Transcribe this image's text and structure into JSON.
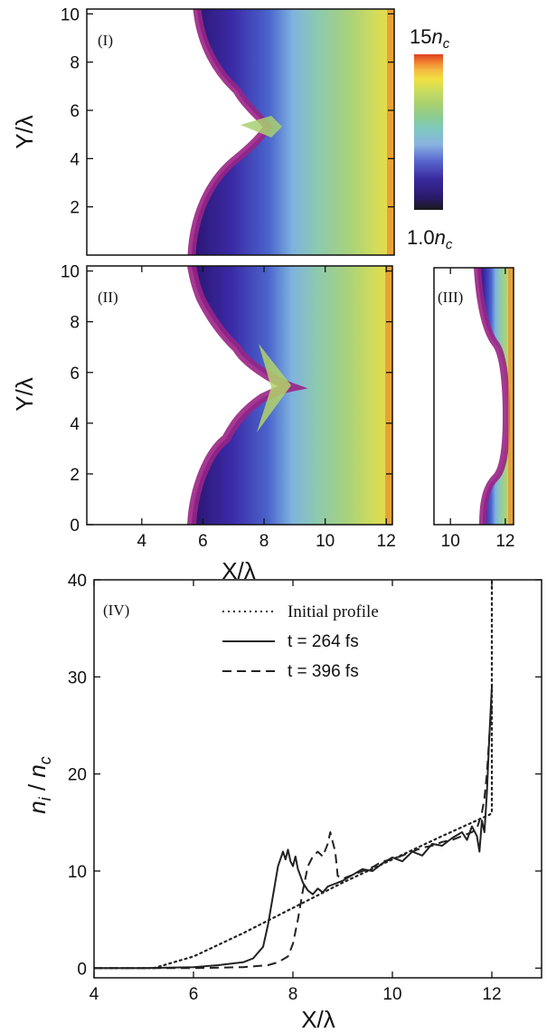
{
  "chart_data": [
    {
      "type": "heatmap",
      "panel_label": "(I)",
      "xlim": [
        2.2,
        12.2
      ],
      "ylim": [
        0,
        10.2
      ],
      "yticks": [
        "2",
        "4",
        "6",
        "8",
        "10"
      ],
      "xticks": [],
      "ylabel": "Y/λ",
      "colorbar": {
        "max_label": "15",
        "max_unit": "n",
        "max_sub": "c",
        "min_label": "1.0",
        "min_unit": "n",
        "min_sub": "c",
        "colors": [
          "#1a1a1a",
          "#2a1a6a",
          "#3a2aa0",
          "#5a6ad0",
          "#8ab4e0",
          "#7ec8c0",
          "#8ccc90",
          "#a8d070",
          "#c8dc60",
          "#f0e040",
          "#f4b840",
          "#f08030",
          "#e04020"
        ]
      }
    },
    {
      "type": "heatmap",
      "panel_label": "(II)",
      "xlim": [
        2.2,
        12.2
      ],
      "ylim": [
        0,
        10.2
      ],
      "xticks": [
        "4",
        "6",
        "8",
        "10",
        "12"
      ],
      "yticks": [
        "0",
        "2",
        "4",
        "6",
        "8",
        "10"
      ],
      "xlabel": "X/λ",
      "ylabel": "Y/λ"
    },
    {
      "type": "heatmap",
      "panel_label": "(III)",
      "xlim": [
        9.4,
        12.3
      ],
      "ylim": [
        0,
        10.2
      ],
      "xticks": [
        "10",
        "12"
      ]
    },
    {
      "type": "line",
      "panel_label": "(IV)",
      "xlabel": "X/λ",
      "ylabel_main": "n",
      "ylabel_sub1": "i",
      "ylabel_mid": " / ",
      "ylabel_main2": "n",
      "ylabel_sub2": "c",
      "xlim": [
        4,
        13
      ],
      "ylim": [
        -1,
        40
      ],
      "xticks": [
        "4",
        "6",
        "8",
        "10",
        "12"
      ],
      "yticks": [
        "0",
        "10",
        "20",
        "30",
        "40"
      ],
      "legend_position": "top-center",
      "series": [
        {
          "name": "Initial profile",
          "style": "dotted",
          "x": [
            4,
            5.2,
            6,
            7,
            8,
            9,
            10,
            11,
            11.95,
            12.0,
            12.0
          ],
          "y": [
            0,
            0,
            1.2,
            3.6,
            6.2,
            8.8,
            11.2,
            13.6,
            15.8,
            16.0,
            40
          ]
        },
        {
          "name": "t = 264 fs",
          "style": "solid",
          "x": [
            4,
            5,
            6,
            6.5,
            7,
            7.2,
            7.4,
            7.5,
            7.6,
            7.7,
            7.8,
            7.85,
            7.9,
            7.95,
            8.0,
            8.05,
            8.1,
            8.15,
            8.2,
            8.3,
            8.4,
            8.5,
            8.6,
            8.7,
            8.8,
            9.0,
            9.2,
            9.4,
            9.6,
            9.8,
            10.0,
            10.2,
            10.4,
            10.6,
            10.8,
            11.0,
            11.2,
            11.4,
            11.5,
            11.6,
            11.7,
            11.75,
            11.8,
            11.85,
            11.9,
            11.95,
            12.0
          ],
          "y": [
            0,
            0,
            0.1,
            0.3,
            0.6,
            1.0,
            2.2,
            4.5,
            7.5,
            10.5,
            12.0,
            11.2,
            12.2,
            11.0,
            10.5,
            11.5,
            10.2,
            9.5,
            8.8,
            8.0,
            7.6,
            8.2,
            7.8,
            8.4,
            8.6,
            9.0,
            9.6,
            10.2,
            10.0,
            10.8,
            11.4,
            11.0,
            12.0,
            11.6,
            12.8,
            12.6,
            13.4,
            14.0,
            13.2,
            14.6,
            13.6,
            12.0,
            15.2,
            14.0,
            18.0,
            24.0,
            29.0
          ]
        },
        {
          "name": "t = 396 fs",
          "style": "dashed",
          "x": [
            4,
            5,
            6,
            7,
            7.5,
            7.7,
            7.9,
            8.0,
            8.1,
            8.2,
            8.3,
            8.4,
            8.5,
            8.6,
            8.7,
            8.75,
            8.8,
            8.85,
            8.9,
            9.0,
            9.2,
            9.4,
            9.6,
            9.8,
            10.0,
            10.2,
            10.4,
            10.6,
            10.8,
            11.0,
            11.2,
            11.4,
            11.6,
            11.7,
            11.8,
            11.85,
            11.9,
            11.95,
            12.0
          ],
          "y": [
            0,
            0,
            0,
            0.1,
            0.3,
            0.6,
            1.2,
            2.5,
            5.0,
            8.0,
            10.5,
            11.5,
            12.0,
            11.5,
            12.8,
            14.0,
            13.0,
            12.0,
            9.5,
            9.2,
            9.6,
            10.0,
            10.4,
            11.0,
            11.2,
            11.6,
            12.0,
            12.4,
            12.6,
            13.0,
            13.2,
            13.6,
            14.0,
            14.4,
            16.0,
            17.5,
            20.0,
            24.0,
            27.0
          ]
        }
      ]
    }
  ]
}
